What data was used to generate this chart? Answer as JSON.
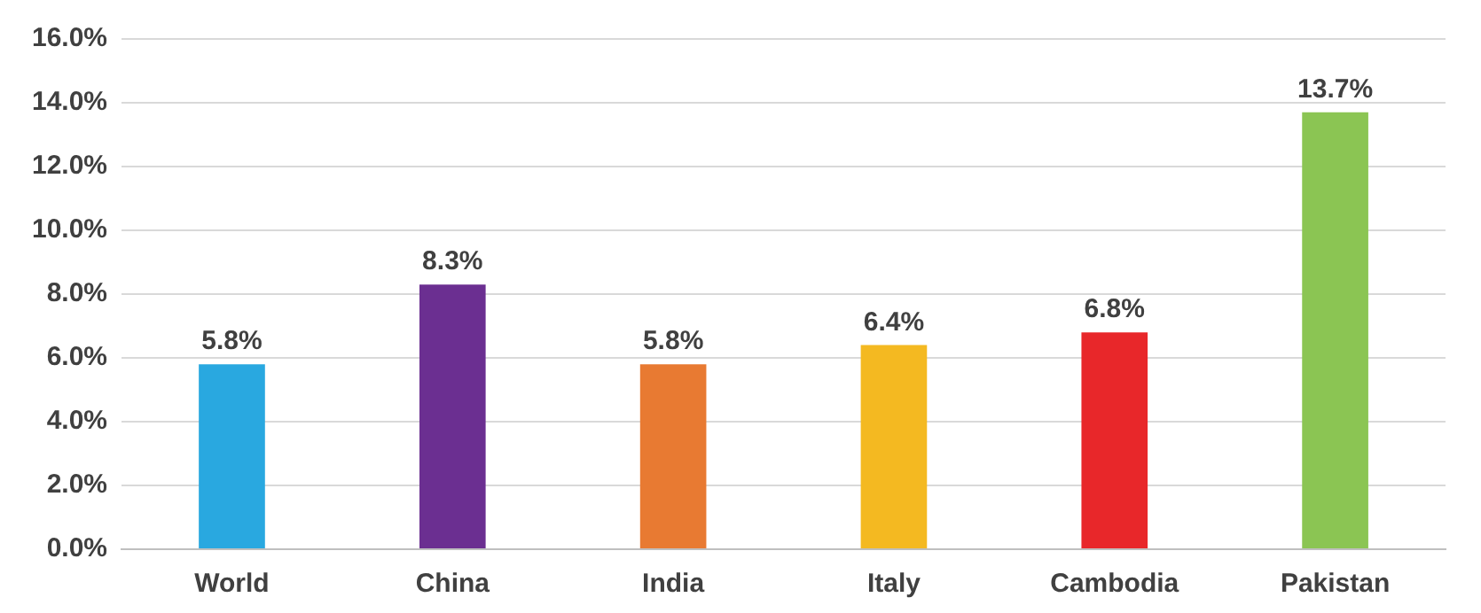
{
  "chart_data": {
    "type": "bar",
    "categories": [
      "World",
      "China",
      "India",
      "Italy",
      "Cambodia",
      "Pakistan"
    ],
    "values": [
      5.8,
      8.3,
      5.8,
      6.4,
      6.8,
      13.7
    ],
    "colors": [
      "#29a8e0",
      "#6b2f91",
      "#e87a32",
      "#f4b921",
      "#e8272a",
      "#8bc553"
    ],
    "value_labels": [
      "5.8%",
      "8.3%",
      "5.8%",
      "6.4%",
      "6.8%",
      "13.7%"
    ],
    "ylim": [
      0,
      16
    ],
    "yticks": [
      {
        "value": 0,
        "label": "0.0%"
      },
      {
        "value": 2,
        "label": "2.0%"
      },
      {
        "value": 4,
        "label": "4.0%"
      },
      {
        "value": 6,
        "label": "6.0%"
      },
      {
        "value": 8,
        "label": "8.0%"
      },
      {
        "value": 10,
        "label": "10.0%"
      },
      {
        "value": 12,
        "label": "12.0%"
      },
      {
        "value": 14,
        "label": "14.0%"
      },
      {
        "value": 16,
        "label": "16.0%"
      }
    ],
    "grid": "y"
  }
}
